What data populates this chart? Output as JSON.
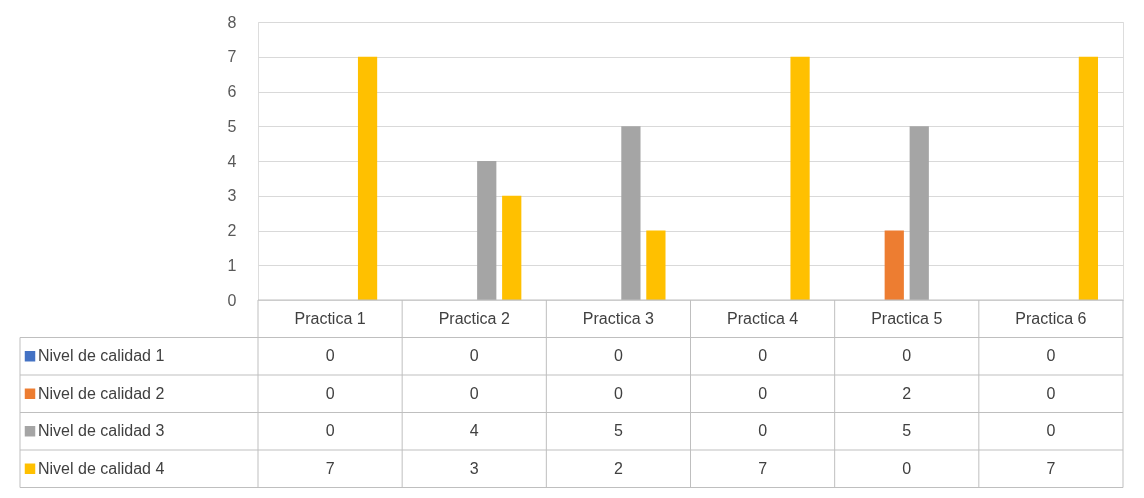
{
  "chart_data": {
    "type": "bar",
    "categories": [
      "Practica 1",
      "Practica 2",
      "Practica 3",
      "Practica 4",
      "Practica 5",
      "Practica 6"
    ],
    "series": [
      {
        "name": "Nivel de calidad 1",
        "color": "#4472c4",
        "values": [
          0,
          0,
          0,
          0,
          0,
          0
        ]
      },
      {
        "name": "Nivel de calidad 2",
        "color": "#ed7d31",
        "values": [
          0,
          0,
          0,
          0,
          2,
          0
        ]
      },
      {
        "name": "Nivel de calidad 3",
        "color": "#a5a5a5",
        "values": [
          0,
          4,
          5,
          0,
          5,
          0
        ]
      },
      {
        "name": "Nivel de calidad 4",
        "color": "#ffc000",
        "values": [
          7,
          3,
          2,
          7,
          0,
          7
        ]
      }
    ],
    "ylim": [
      0,
      8
    ],
    "yticks": [
      0,
      1,
      2,
      3,
      4,
      5,
      6,
      7,
      8
    ],
    "grid": "y",
    "legend": "bottom",
    "data_labels": true
  }
}
